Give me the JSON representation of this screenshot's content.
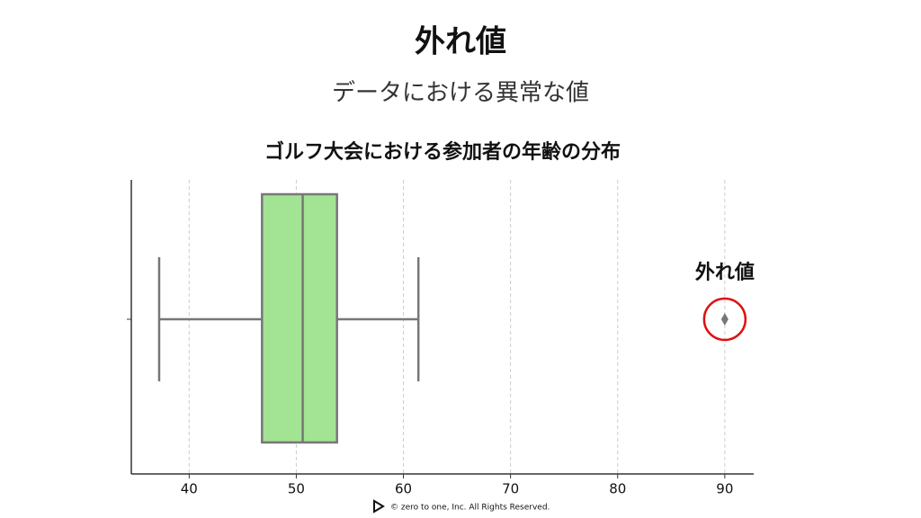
{
  "slide": {
    "title": "外れ値",
    "subtitle": "データにおける異常な値"
  },
  "footer": "©  zero to one, Inc. All Rights Reserved.",
  "chart_data": {
    "type": "box",
    "title": "ゴルフ大会における参加者の年齢の分布",
    "annotation": "外れ値",
    "box": {
      "whislo": 37.2,
      "q1": 46.8,
      "med": 50.6,
      "q3": 53.8,
      "whishi": 61.4,
      "fliers": [
        90
      ]
    },
    "color": "#a2e394",
    "edge_color": "#777777",
    "annotation_color": "#e01010",
    "xlim": [
      34.6,
      92.7
    ],
    "xticks": [
      40,
      50,
      60,
      70,
      80,
      90
    ],
    "grid": true
  }
}
